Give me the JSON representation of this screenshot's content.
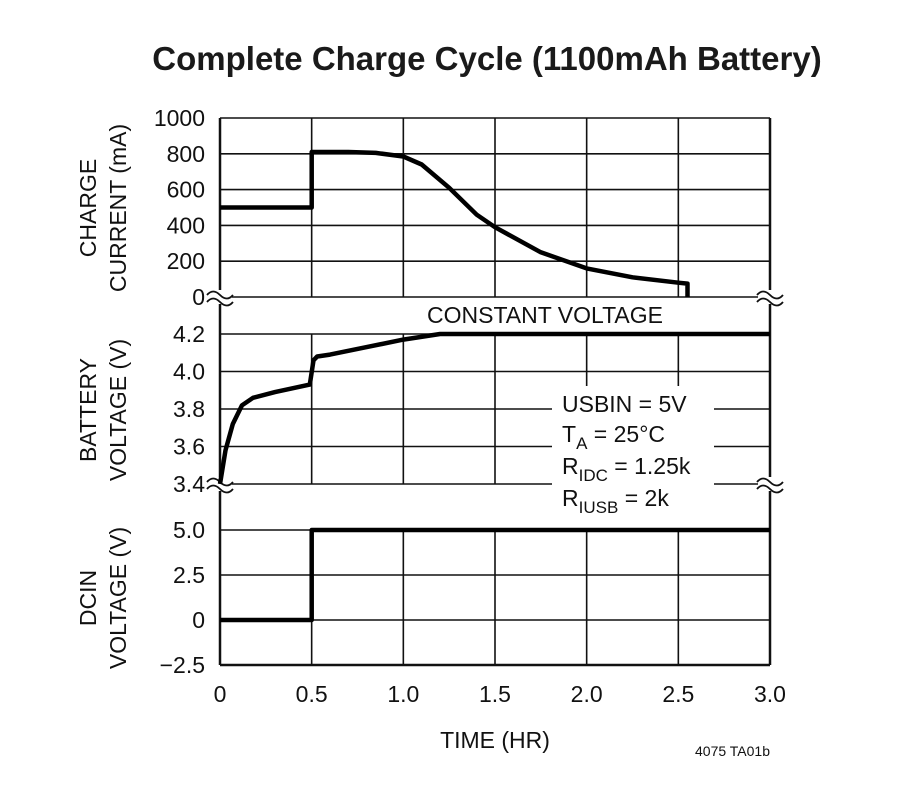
{
  "chart_data": [
    {
      "type": "line",
      "title": "Complete Charge Cycle (1100mAh Battery)",
      "ylabel": [
        "CHARGE",
        "CURRENT (mA)"
      ],
      "ylim": [
        0,
        1000
      ],
      "yticks": [
        "0",
        "200",
        "400",
        "600",
        "800",
        "1000"
      ],
      "grid": true,
      "series": [
        {
          "x": [
            0,
            0.5,
            0.5,
            0.7,
            0.85,
            1.0,
            1.1,
            1.25,
            1.4,
            1.5,
            1.75,
            2.0,
            2.25,
            2.5,
            2.55,
            2.55
          ],
          "y": [
            500,
            500,
            810,
            810,
            805,
            785,
            740,
            610,
            460,
            390,
            250,
            160,
            110,
            80,
            75,
            0
          ]
        }
      ]
    },
    {
      "type": "line",
      "ylabel": [
        "BATTERY",
        "VOLTAGE (V)"
      ],
      "ylim": [
        3.4,
        4.2
      ],
      "yticks": [
        "3.4",
        "3.6",
        "3.8",
        "4.0",
        "4.2"
      ],
      "grid": true,
      "annotation": "CONSTANT VOLTAGE",
      "series": [
        {
          "x": [
            0,
            0.03,
            0.07,
            0.12,
            0.18,
            0.3,
            0.49,
            0.51,
            0.53,
            0.6,
            0.8,
            1.0,
            1.2,
            1.5,
            3.0
          ],
          "y": [
            3.4,
            3.58,
            3.72,
            3.82,
            3.86,
            3.89,
            3.93,
            4.06,
            4.08,
            4.09,
            4.13,
            4.17,
            4.2,
            4.2,
            4.2
          ]
        }
      ]
    },
    {
      "type": "line",
      "ylabel": [
        "DCIN",
        "VOLTAGE (V)"
      ],
      "ylim": [
        -2.5,
        5.0
      ],
      "yticks": [
        "−2.5",
        "0",
        "2.5",
        "5.0"
      ],
      "grid": true,
      "xlabel": "TIME (HR)",
      "xlim": [
        0,
        3.0
      ],
      "xticks": [
        "0",
        "0.5",
        "1.0",
        "1.5",
        "2.0",
        "2.5",
        "3.0"
      ],
      "series": [
        {
          "x": [
            0,
            0.5,
            0.5,
            3.0
          ],
          "y": [
            0,
            0,
            5.0,
            5.0
          ]
        }
      ]
    }
  ],
  "conditions": {
    "line1": "USBIN = 5V",
    "line2_main": "T",
    "line2_sub": "A",
    "line2_rest": " = 25°C",
    "line3_main": "R",
    "line3_sub": "IDC",
    "line3_rest": " = 1.25k",
    "line4_main": "R",
    "line4_sub": "IUSB",
    "line4_rest": " = 2k"
  },
  "figure_code": "4075 TA01b"
}
